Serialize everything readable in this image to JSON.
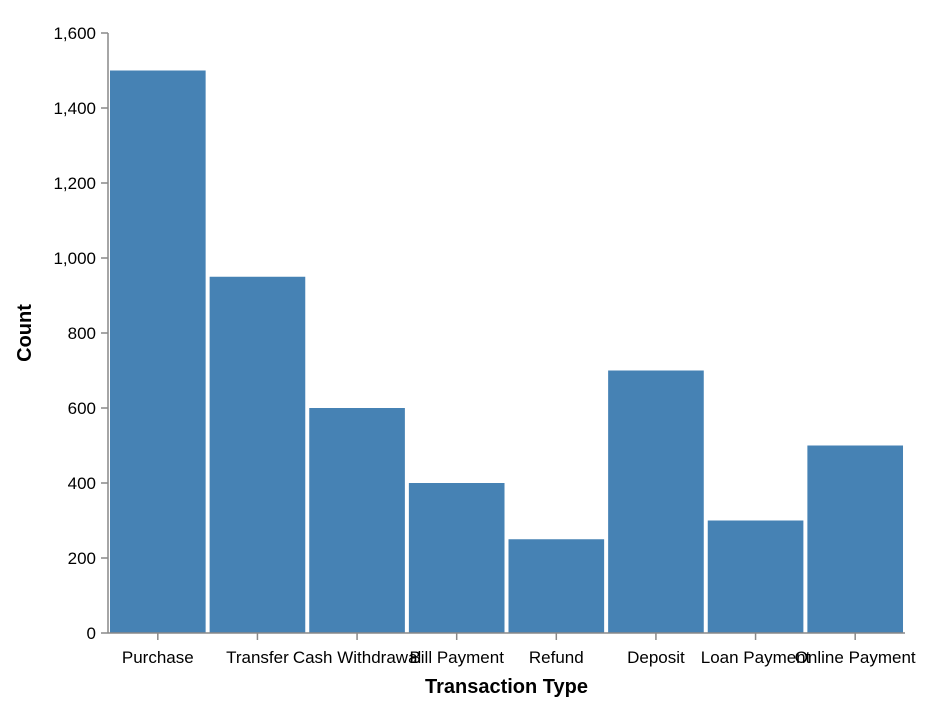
{
  "chart_data": {
    "type": "bar",
    "title": "",
    "xlabel": "Transaction Type",
    "ylabel": "Count",
    "categories": [
      "Purchase",
      "Transfer",
      "Cash Withdrawal",
      "Bill Payment",
      "Refund",
      "Deposit",
      "Loan Payment",
      "Online Payment"
    ],
    "values": [
      1500,
      950,
      600,
      400,
      250,
      700,
      300,
      500
    ],
    "ylim": [
      0,
      1600
    ],
    "yticks": [
      "0",
      "200",
      "400",
      "600",
      "800",
      "1,000",
      "1,200",
      "1,400",
      "1,600"
    ],
    "grid": false,
    "legend": "none",
    "bar_color": "#4682b4"
  }
}
